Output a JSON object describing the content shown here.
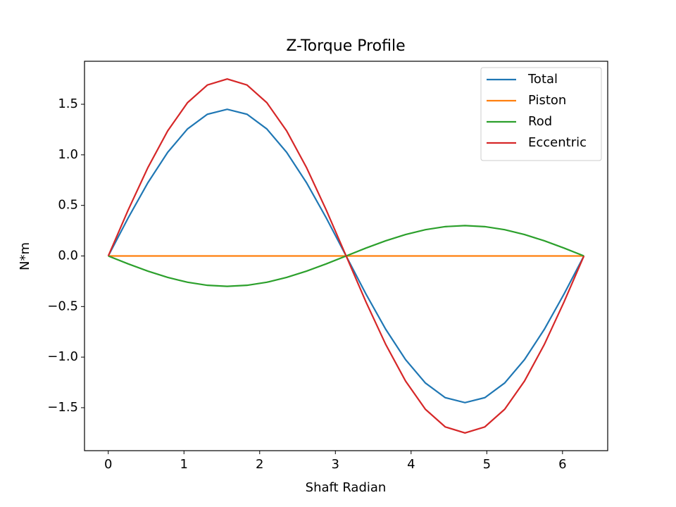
{
  "chart_data": {
    "type": "line",
    "title": "Z-Torque Profile",
    "xlabel": "Shaft Radian",
    "ylabel": "N*m",
    "x": [
      0,
      0.262,
      0.524,
      0.785,
      1.047,
      1.309,
      1.571,
      1.833,
      2.094,
      2.356,
      2.618,
      2.88,
      3.142,
      3.403,
      3.665,
      3.927,
      4.189,
      4.451,
      4.712,
      4.974,
      5.236,
      5.498,
      5.76,
      6.021,
      6.283
    ],
    "series": [
      {
        "name": "Total",
        "color": "#1f77b4",
        "values": [
          0,
          0.375,
          0.725,
          1.025,
          1.256,
          1.401,
          1.45,
          1.401,
          1.256,
          1.025,
          0.725,
          0.375,
          0,
          -0.375,
          -0.725,
          -1.025,
          -1.256,
          -1.401,
          -1.45,
          -1.401,
          -1.256,
          -1.025,
          -0.725,
          -0.375,
          0
        ]
      },
      {
        "name": "Piston",
        "color": "#ff7f0e",
        "values": [
          0,
          0,
          0,
          0,
          0,
          0,
          0,
          0,
          0,
          0,
          0,
          0,
          0,
          0,
          0,
          0,
          0,
          0,
          0,
          0,
          0,
          0,
          0,
          0,
          0
        ]
      },
      {
        "name": "Rod",
        "color": "#2ca02c",
        "values": [
          0,
          -0.078,
          -0.15,
          -0.212,
          -0.26,
          -0.29,
          -0.3,
          -0.29,
          -0.26,
          -0.212,
          -0.15,
          -0.078,
          0,
          0.078,
          0.15,
          0.212,
          0.26,
          0.29,
          0.3,
          0.29,
          0.26,
          0.212,
          0.15,
          0.078,
          0
        ]
      },
      {
        "name": "Eccentric",
        "color": "#d62728",
        "values": [
          0,
          0.453,
          0.875,
          1.237,
          1.516,
          1.69,
          1.75,
          1.69,
          1.516,
          1.237,
          0.875,
          0.453,
          0,
          -0.453,
          -0.875,
          -1.237,
          -1.516,
          -1.69,
          -1.75,
          -1.69,
          -1.516,
          -1.237,
          -0.875,
          -0.453,
          0
        ]
      }
    ],
    "xlim": [
      -0.314,
      6.597
    ],
    "ylim": [
      -1.925,
      1.925
    ],
    "xticks": [
      0,
      1,
      2,
      3,
      4,
      5,
      6
    ],
    "yticks": [
      {
        "value": -1.5,
        "label": "−1.5"
      },
      {
        "value": -1,
        "label": "−1.0"
      },
      {
        "value": -0.5,
        "label": "−0.5"
      },
      {
        "value": 0,
        "label": "0.0"
      },
      0.5,
      {
        "value": 1,
        "label": "1.0"
      },
      1.5
    ],
    "grid": false,
    "legend": "upper right"
  }
}
